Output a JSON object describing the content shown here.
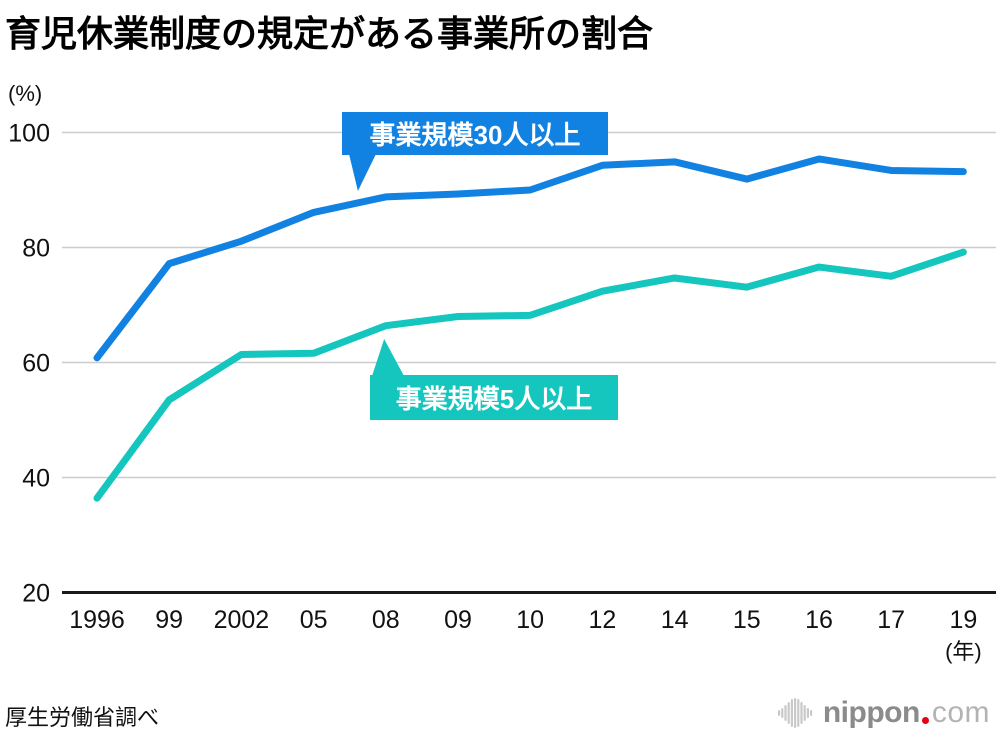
{
  "title": "育児休業制度の規定がある事業所の割合",
  "y_axis_unit": "(%)",
  "x_axis_unit": "(年)",
  "source_note": "厚生労働省調べ",
  "logo": {
    "name": "nippon",
    "tld": "com",
    "dot_color": "#e60012",
    "name_color": "#8b8b8b",
    "tld_color": "#b3b3b3",
    "icon_color": "#c9c9c9"
  },
  "chart_data": {
    "type": "line",
    "title": "育児休業制度の規定がある事業所の割合",
    "categories": [
      "1996",
      "99",
      "2002",
      "05",
      "08",
      "09",
      "10",
      "12",
      "14",
      "15",
      "16",
      "17",
      "19"
    ],
    "series": [
      {
        "name": "事業規模30人以上",
        "color": "#1182E2",
        "values": [
          60.8,
          77.2,
          81.1,
          86.1,
          88.8,
          89.3,
          90.0,
          94.3,
          94.9,
          91.9,
          95.4,
          93.4,
          93.2
        ]
      },
      {
        "name": "事業規模5人以上",
        "color": "#14C6BE",
        "values": [
          36.4,
          53.5,
          61.4,
          61.6,
          66.4,
          68.0,
          68.2,
          72.4,
          74.7,
          73.1,
          76.6,
          75.0,
          79.2
        ]
      }
    ],
    "ylim": [
      20,
      100
    ],
    "yticks": [
      20,
      40,
      60,
      80,
      100
    ],
    "xlabel": "(年)",
    "ylabel": "(%)",
    "grid": true,
    "grid_color": "#cccccc",
    "axis_color": "#1a1a1a",
    "legend_position": "inline-callouts"
  }
}
